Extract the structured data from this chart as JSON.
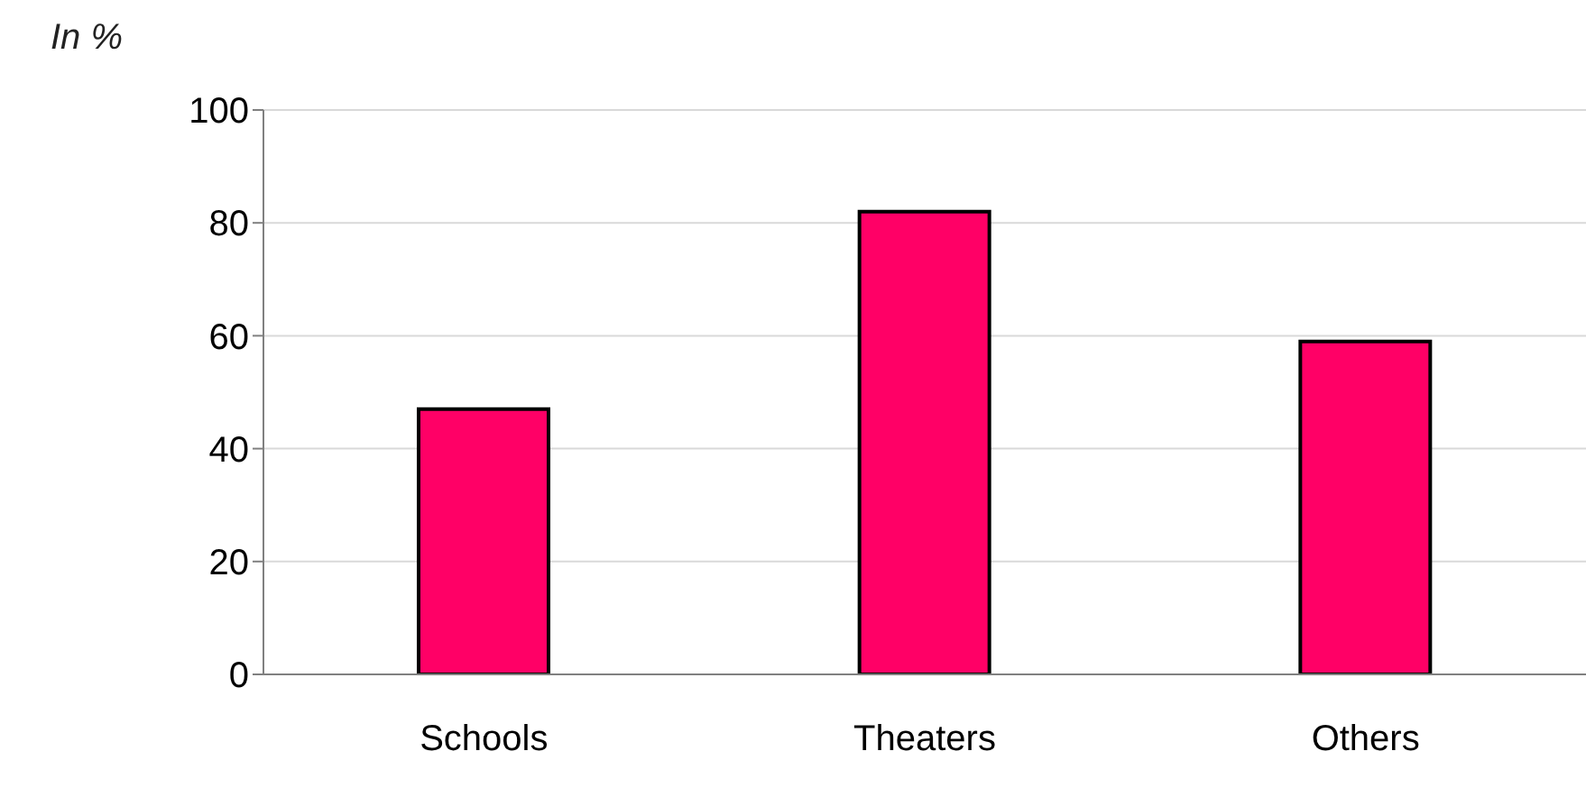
{
  "chart_data": {
    "type": "bar",
    "ylabel": "In %",
    "categories": [
      "Schools",
      "Theaters",
      "Others"
    ],
    "values": [
      47,
      82,
      59
    ],
    "color": "#ff0066",
    "ylim": [
      0,
      100
    ],
    "yticks": [
      0,
      20,
      40,
      60,
      80,
      100
    ],
    "grid": "y",
    "legend": false
  }
}
